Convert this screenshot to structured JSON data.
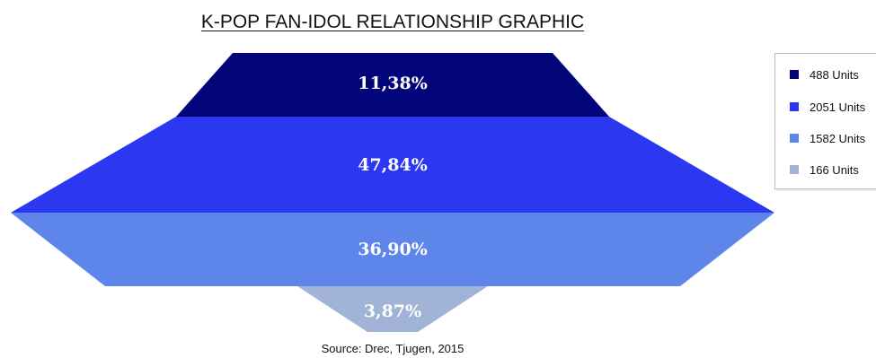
{
  "title": "K-POP FAN-IDOL RELATIONSHIP GRAPHIC",
  "source": "Source: Drec, Tjugen, 2015",
  "chart_data": {
    "type": "funnel",
    "title": "K-POP FAN-IDOL RELATIONSHIP GRAPHIC",
    "legend_position": "top-right",
    "series": [
      {
        "name": "488 Units",
        "units": 488,
        "percent_label": "11,38%",
        "color": "#02057a"
      },
      {
        "name": "2051 Units",
        "units": 2051,
        "percent_label": "47,84%",
        "color": "#2b37f0"
      },
      {
        "name": "1582 Units",
        "units": 1582,
        "percent_label": "36,90%",
        "color": "#5e86ea"
      },
      {
        "name": "166 Units",
        "units": 166,
        "percent_label": "3,87%",
        "color": "#a2b3d8"
      }
    ]
  }
}
